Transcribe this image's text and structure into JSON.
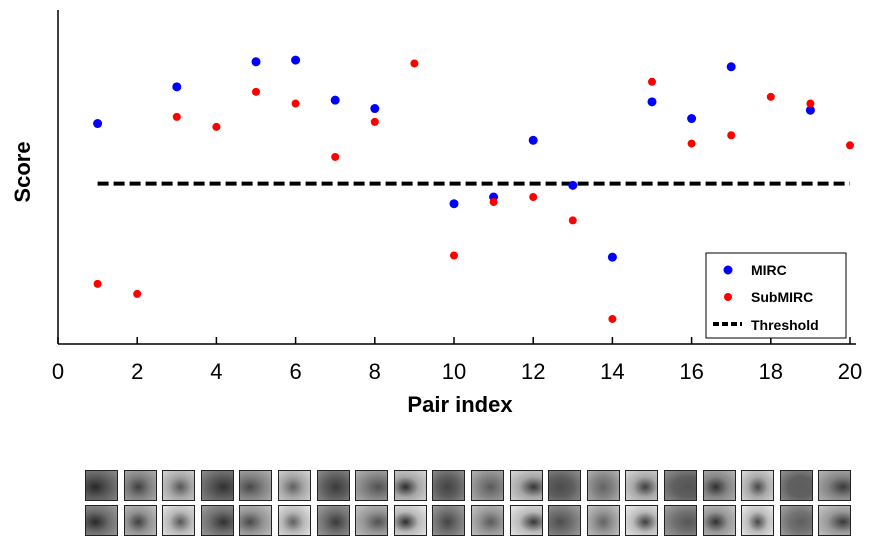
{
  "chart_data": {
    "type": "scatter",
    "xlabel": "Pair index",
    "ylabel": "Score",
    "xlim": [
      0,
      20
    ],
    "xticks": [
      0,
      2,
      4,
      6,
      8,
      10,
      12,
      14,
      16,
      18,
      20
    ],
    "yticks": [],
    "grid": false,
    "legend_position": "bottom-right",
    "series": [
      {
        "name": "MIRC",
        "color": "#0000ff",
        "points": [
          {
            "x": 1,
            "y": 0.66
          },
          {
            "x": 3,
            "y": 0.77
          },
          {
            "x": 5,
            "y": 0.845
          },
          {
            "x": 6,
            "y": 0.85
          },
          {
            "x": 7,
            "y": 0.73
          },
          {
            "x": 8,
            "y": 0.705
          },
          {
            "x": 10,
            "y": 0.42
          },
          {
            "x": 11,
            "y": 0.44
          },
          {
            "x": 12,
            "y": 0.61
          },
          {
            "x": 13,
            "y": 0.475
          },
          {
            "x": 14,
            "y": 0.26
          },
          {
            "x": 15,
            "y": 0.725
          },
          {
            "x": 16,
            "y": 0.675
          },
          {
            "x": 17,
            "y": 0.83
          },
          {
            "x": 19,
            "y": 0.7
          }
        ]
      },
      {
        "name": "SubMIRC",
        "color": "#ff0000",
        "points": [
          {
            "x": 1,
            "y": 0.18
          },
          {
            "x": 2,
            "y": 0.15
          },
          {
            "x": 3,
            "y": 0.68
          },
          {
            "x": 4,
            "y": 0.65
          },
          {
            "x": 5,
            "y": 0.755
          },
          {
            "x": 6,
            "y": 0.72
          },
          {
            "x": 7,
            "y": 0.56
          },
          {
            "x": 8,
            "y": 0.665
          },
          {
            "x": 9,
            "y": 0.84
          },
          {
            "x": 10,
            "y": 0.265
          },
          {
            "x": 11,
            "y": 0.425
          },
          {
            "x": 12,
            "y": 0.44
          },
          {
            "x": 13,
            "y": 0.37
          },
          {
            "x": 14,
            "y": 0.075
          },
          {
            "x": 15,
            "y": 0.785
          },
          {
            "x": 16,
            "y": 0.6
          },
          {
            "x": 17,
            "y": 0.625
          },
          {
            "x": 18,
            "y": 0.74
          },
          {
            "x": 19,
            "y": 0.72
          },
          {
            "x": 20,
            "y": 0.595
          }
        ]
      }
    ],
    "threshold": {
      "name": "Threshold",
      "y": 0.48,
      "x_range": [
        1,
        20
      ],
      "color": "#000000",
      "style": "dashed"
    }
  },
  "thumbnails": {
    "count": 20,
    "rows": 2
  }
}
